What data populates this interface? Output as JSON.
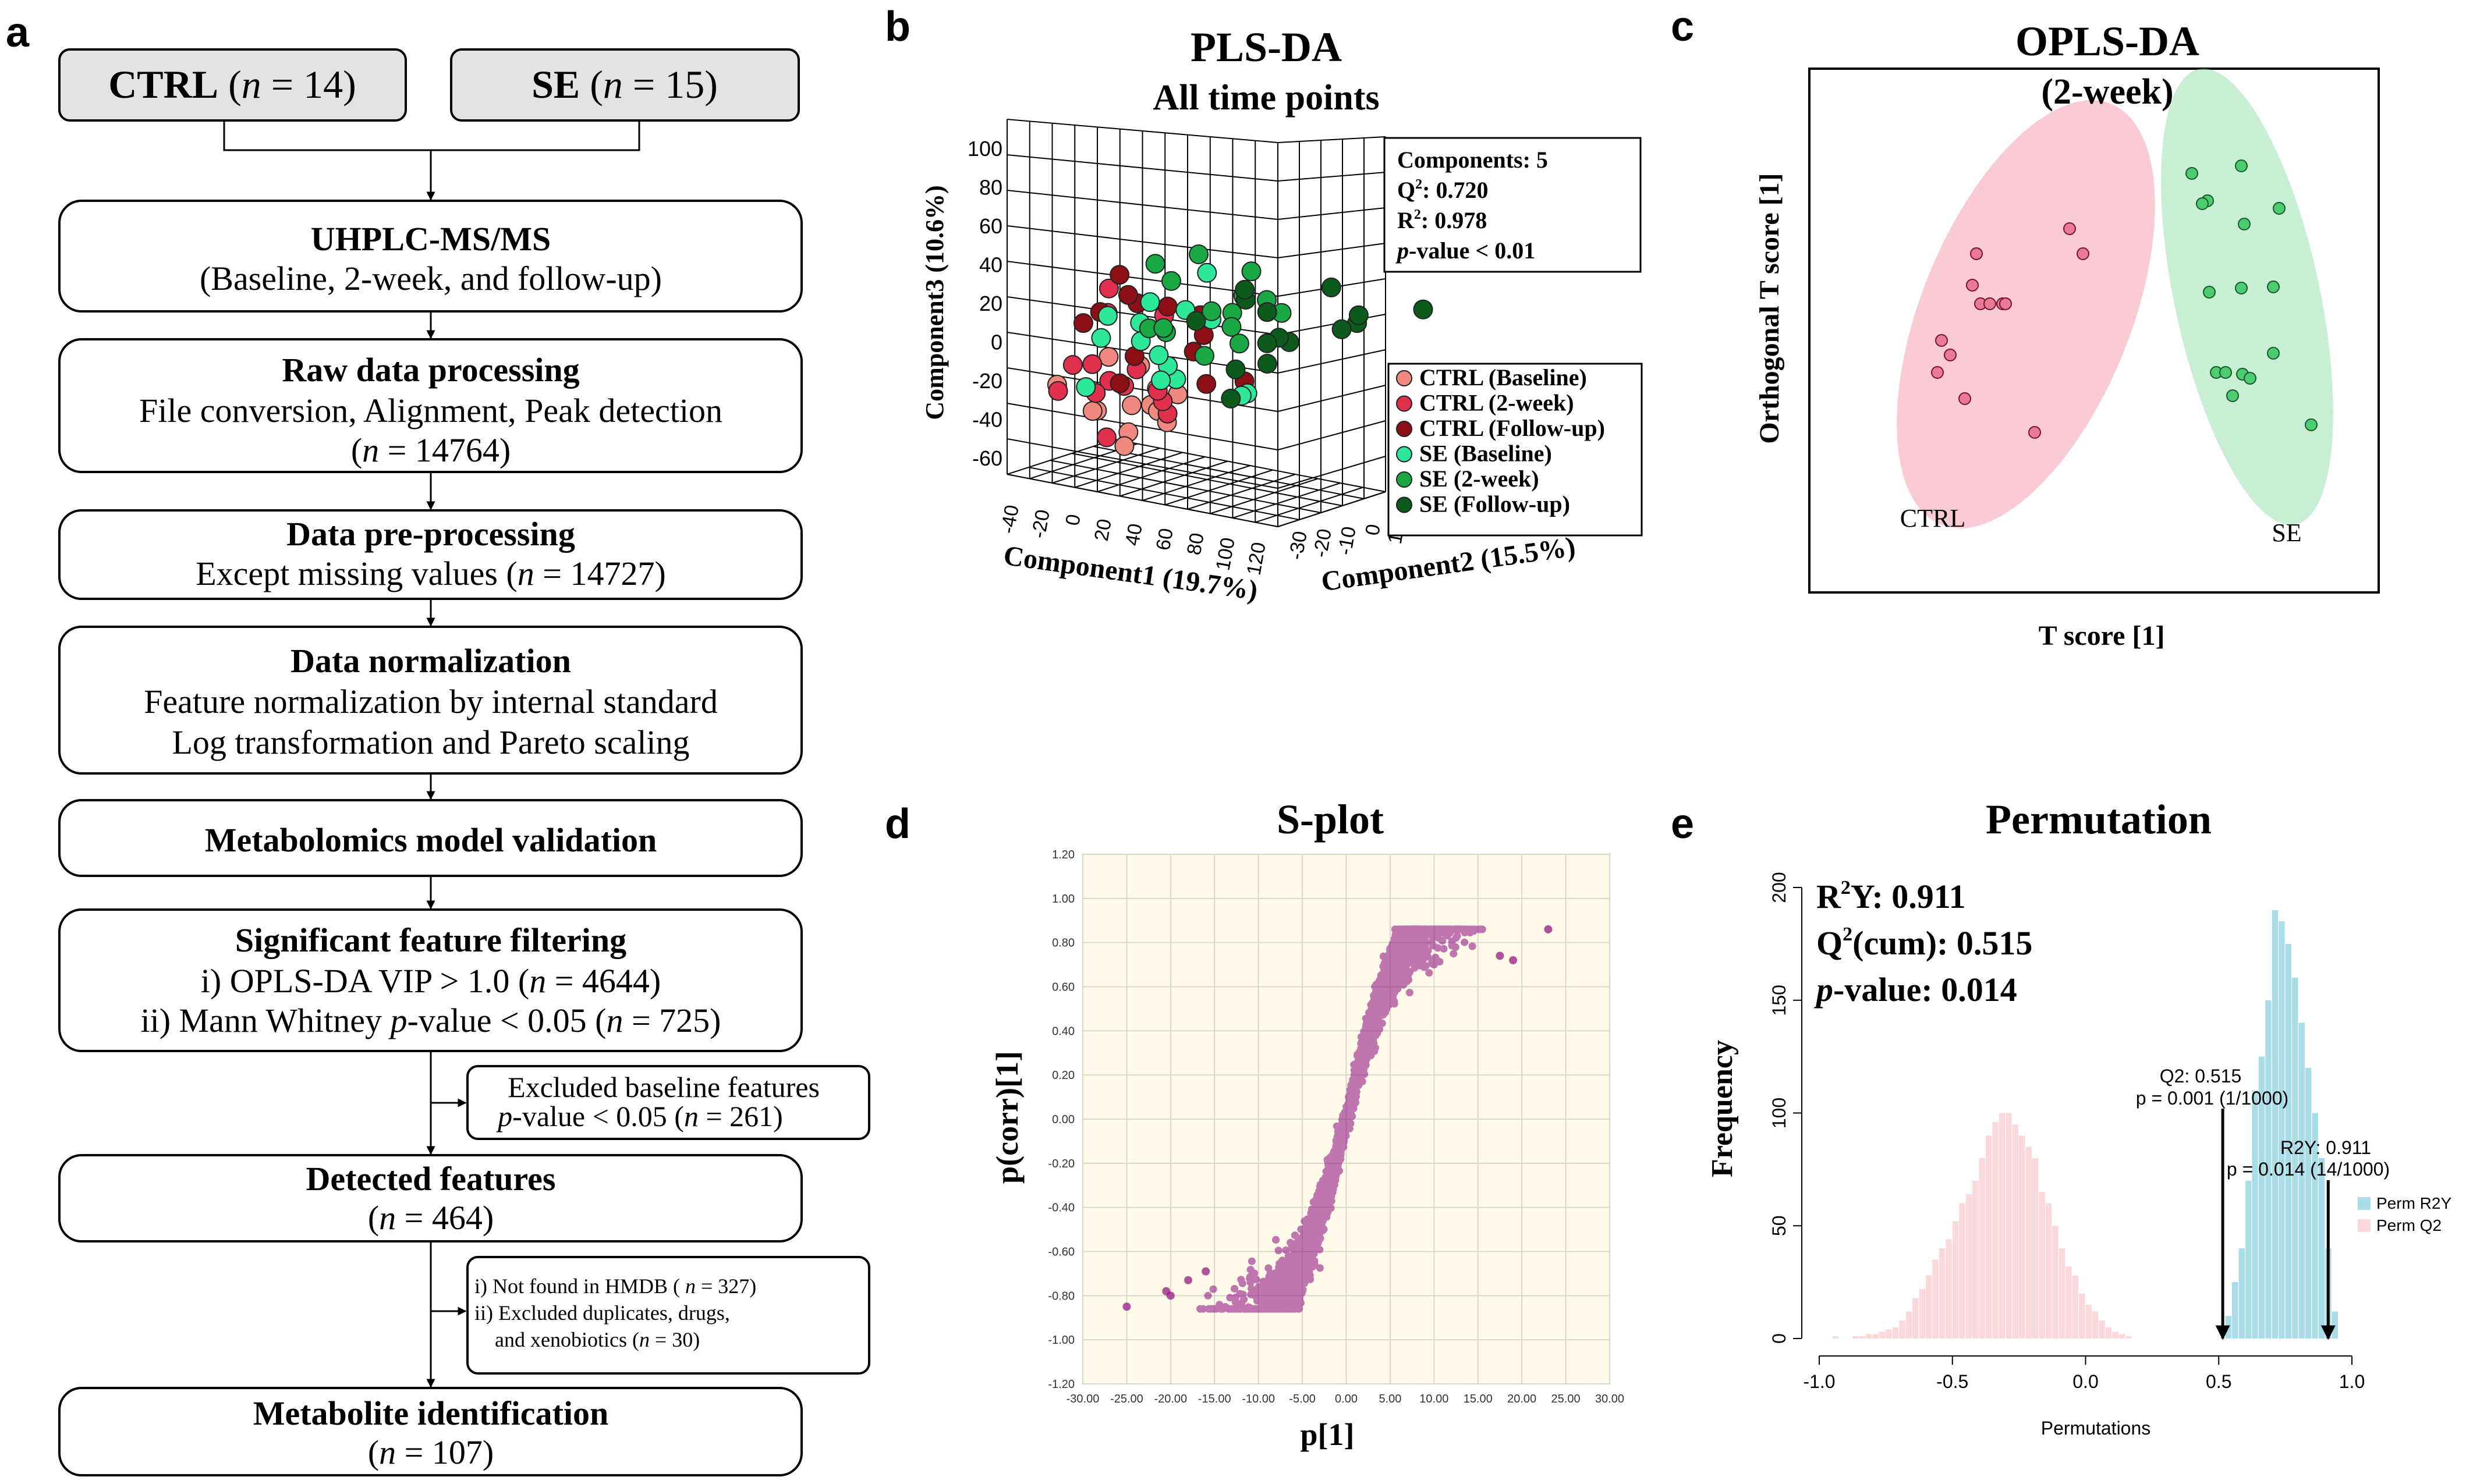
{
  "panels": {
    "a": "a",
    "b": "b",
    "c": "c",
    "d": "d",
    "e": "e"
  },
  "flowchart": {
    "ctrl": {
      "label": "CTRL",
      "n_prefix": "(",
      "n_var": "n",
      "n_eq": " = 14)"
    },
    "se": {
      "label": "SE",
      "n_prefix": "(",
      "n_var": "n",
      "n_eq": " = 15)"
    },
    "uhplc": {
      "title": "UHPLC-MS/MS",
      "line1": "(Baseline, 2-week, and follow-up)"
    },
    "raw": {
      "title": "Raw data processing",
      "line1": "File conversion, Alignment, Peak detection",
      "line2_a": "(",
      "line2_n": "n",
      "line2_b": " = 14764)"
    },
    "preproc": {
      "title": "Data pre-processing",
      "line1_a": "Except missing values (",
      "line1_n": "n",
      "line1_b": " = 14727)"
    },
    "norm": {
      "title": "Data normalization",
      "line1": "Feature normalization by internal standard",
      "line2": "Log transformation and Pareto scaling"
    },
    "validation": {
      "title": "Metabolomics model validation"
    },
    "filtering": {
      "title": "Significant feature filtering",
      "line1_a": "i) OPLS-DA VIP > 1.0 (",
      "line1_n": "n",
      "line1_b": " = 4644)",
      "line2_a": "ii) Mann Whitney ",
      "line2_p": "p",
      "line2_b": "-value < 0.05 (",
      "line2_n": "n",
      "line2_c": " = 725)"
    },
    "excluded_baseline": {
      "line1": "Excluded baseline features",
      "line2_p": "p",
      "line2_a": "-value < 0.05 (",
      "line2_n": "n",
      "line2_b": " = 261)"
    },
    "detected": {
      "title": "Detected features",
      "line1_a": "(",
      "line1_n": "n",
      "line1_b": " = 464)"
    },
    "not_found": {
      "line1_a": "i) Not found in HMDB ( ",
      "line1_n": "n",
      "line1_b": " = 327)",
      "line2": "ii) Excluded duplicates, drugs,",
      "line3_a": "and xenobiotics (",
      "line3_n": "n",
      "line3_b": " = 30)"
    },
    "identification": {
      "title": "Metabolite identification",
      "line1_a": "(",
      "line1_n": "n",
      "line1_b": " = 107)"
    }
  },
  "plsda": {
    "title": "PLS-DA",
    "subtitle": "All time points",
    "stats": {
      "components": "Components: 5",
      "q2": "Q",
      "q2_sup": "2",
      "q2_val": ": 0.720",
      "r2": "R",
      "r2_sup": "2",
      "r2_val": ": 0.978",
      "p": "p",
      "p_val": "-value < 0.01"
    },
    "z_axis": "Component3 (10.6%)",
    "x_axis": "Component1 (19.7%)",
    "y_axis": "Component2 (15.5%)",
    "z_ticks": [
      "100",
      "80",
      "60",
      "40",
      "20",
      "0",
      "-20",
      "-40",
      "-60"
    ],
    "x_ticks": [
      "-40",
      "-20",
      "0",
      "20",
      "40",
      "60",
      "80",
      "100",
      "120"
    ],
    "y_ticks": [
      "-30",
      "-20",
      "-10",
      "0",
      "10"
    ],
    "legend": [
      {
        "label": "CTRL (Baseline)",
        "color": "#f08a80"
      },
      {
        "label": "CTRL (2-week)",
        "color": "#e0304e"
      },
      {
        "label": "CTRL (Follow-up)",
        "color": "#8b0f14"
      },
      {
        "label": "SE (Baseline)",
        "color": "#2ee89a"
      },
      {
        "label": "SE (2-week)",
        "color": "#1aa845"
      },
      {
        "label": "SE (Follow-up)",
        "color": "#0c5a1c"
      }
    ]
  },
  "oplsda": {
    "title": "OPLS-DA",
    "subtitle": "(2-week)",
    "xlabel": "T score [1]",
    "ylabel": "Orthogonal T score [1]",
    "ctrl_label": "CTRL",
    "se_label": "SE",
    "ctrl_color": "#f5a0b0",
    "se_color": "#9be0b0"
  },
  "splot": {
    "title": "S-plot",
    "xlabel": "p[1]",
    "ylabel": "p(corr)[1]",
    "x_ticks": [
      "-30.00",
      "-25.00",
      "-20.00",
      "-15.00",
      "-10.00",
      "-5.00",
      "0.00",
      "5.00",
      "10.00",
      "15.00",
      "20.00",
      "25.00",
      "30.00"
    ],
    "y_ticks": [
      "1.20",
      "1.00",
      "0.80",
      "0.60",
      "0.40",
      "0.20",
      "0.00",
      "-0.20",
      "-0.40",
      "-0.60",
      "-0.80",
      "-1.00",
      "-1.20"
    ],
    "point_color": "#8b0a7e"
  },
  "permutation": {
    "title": "Permutation",
    "stat1_a": "R",
    "stat1_sup": "2",
    "stat1_b": "Y: 0.911",
    "stat2_a": "Q",
    "stat2_sup": "2",
    "stat2_b": "(cum): 0.515",
    "stat3_p": "p",
    "stat3_b": "-value: 0.014",
    "xlabel": "Permutations",
    "ylabel": "Frequency",
    "x_ticks": [
      "-1.0",
      "-0.5",
      "0.0",
      "0.5",
      "1.0"
    ],
    "y_ticks": [
      "0",
      "50",
      "100",
      "150",
      "200"
    ],
    "q2_annot1": "Q2: 0.515",
    "q2_annot2": "p = 0.001 (1/1000)",
    "r2_annot1": "R2Y: 0.911",
    "r2_annot2": "p = 0.014 (14/1000)",
    "legend_r2y": "Perm R2Y",
    "legend_q2": "Perm Q2",
    "r2y_color": "#a8dde8",
    "q2_color": "#fbd9da"
  },
  "chart_data": [
    {
      "type": "histogram",
      "title": "Permutation",
      "xlabel": "Permutations",
      "ylabel": "Frequency",
      "xlim": [
        -1.0,
        1.0
      ],
      "ylim": [
        0,
        200
      ],
      "series": [
        {
          "name": "Perm Q2",
          "bin_start": -1.0,
          "bin_width": 0.025,
          "values": [
            0,
            0,
            1,
            0,
            0,
            1,
            1,
            2,
            2,
            3,
            4,
            5,
            8,
            12,
            18,
            22,
            28,
            35,
            40,
            44,
            52,
            60,
            64,
            70,
            80,
            90,
            96,
            100,
            100,
            95,
            90,
            85,
            80,
            65,
            60,
            50,
            40,
            32,
            28,
            20,
            15,
            12,
            8,
            5,
            3,
            2,
            1,
            0,
            0,
            0,
            0,
            0,
            0,
            0,
            0,
            0,
            0,
            0,
            0,
            0,
            0,
            0,
            0,
            0,
            0,
            0,
            0,
            0,
            0,
            0,
            0,
            0,
            0,
            0,
            0,
            0,
            0,
            0,
            0,
            0
          ]
        },
        {
          "name": "Perm R2Y",
          "bin_start": 0.525,
          "bin_width": 0.025,
          "values": [
            10,
            25,
            40,
            70,
            110,
            125,
            150,
            190,
            185,
            175,
            160,
            140,
            120,
            100,
            80,
            40,
            12
          ]
        }
      ],
      "annotations": [
        {
          "label": "Q2: 0.515",
          "x": 0.515
        },
        {
          "label": "R2Y: 0.911",
          "x": 0.911
        }
      ]
    },
    {
      "type": "scatter",
      "title": "S-plot",
      "xlabel": "p[1]",
      "ylabel": "p(corr)[1]",
      "xlim": [
        -30,
        30
      ],
      "ylim": [
        -1.2,
        1.2
      ]
    },
    {
      "type": "scatter",
      "title": "OPLS-DA",
      "xlabel": "T score [1]",
      "ylabel": "Orthogonal T score [1]",
      "series": [
        {
          "name": "CTRL"
        },
        {
          "name": "SE"
        }
      ]
    }
  ]
}
